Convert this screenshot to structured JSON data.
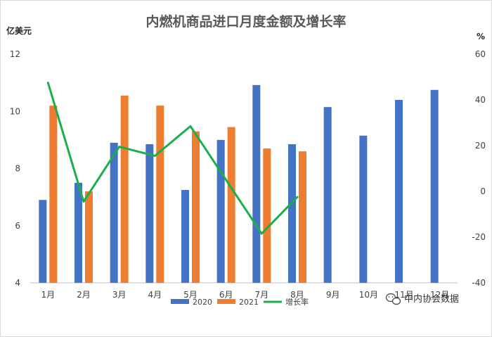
{
  "chart_data": {
    "type": "bar",
    "title": "内燃机商品进口月度金额及增长率",
    "ylabel_left": "亿美元",
    "ylabel_right": "%",
    "categories": [
      "1月",
      "2月",
      "3月",
      "4月",
      "5月",
      "6月",
      "7月",
      "8月",
      "9月",
      "10月",
      "11月",
      "12月"
    ],
    "left_axis": {
      "min": 4,
      "max": 12,
      "ticks": [
        4,
        6,
        8,
        10,
        12
      ]
    },
    "right_axis": {
      "min": -40,
      "max": 60,
      "ticks": [
        -40,
        -20,
        0,
        20,
        40,
        60
      ]
    },
    "grid": false,
    "legend_position": "bottom",
    "series": [
      {
        "name": "2020",
        "type": "bar",
        "axis": "left",
        "color": "#4472C4",
        "values": [
          6.9,
          7.5,
          8.9,
          8.85,
          7.25,
          9.0,
          10.92,
          8.85,
          10.15,
          9.15,
          10.4,
          10.75
        ]
      },
      {
        "name": "2021",
        "type": "bar",
        "axis": "left",
        "color": "#ED7D31",
        "values": [
          10.2,
          7.2,
          10.55,
          10.2,
          9.3,
          9.45,
          8.7,
          8.6,
          null,
          null,
          null,
          null
        ]
      },
      {
        "name": "增长率",
        "type": "line",
        "axis": "right",
        "color": "#1AAF4A",
        "values": [
          47.5,
          -4.5,
          19.5,
          15.5,
          28.5,
          5.0,
          -18.5,
          -2.5,
          null,
          null,
          null,
          null
        ]
      }
    ]
  },
  "watermark": {
    "icon": "wechat-icon",
    "text": "中内协会数据"
  }
}
